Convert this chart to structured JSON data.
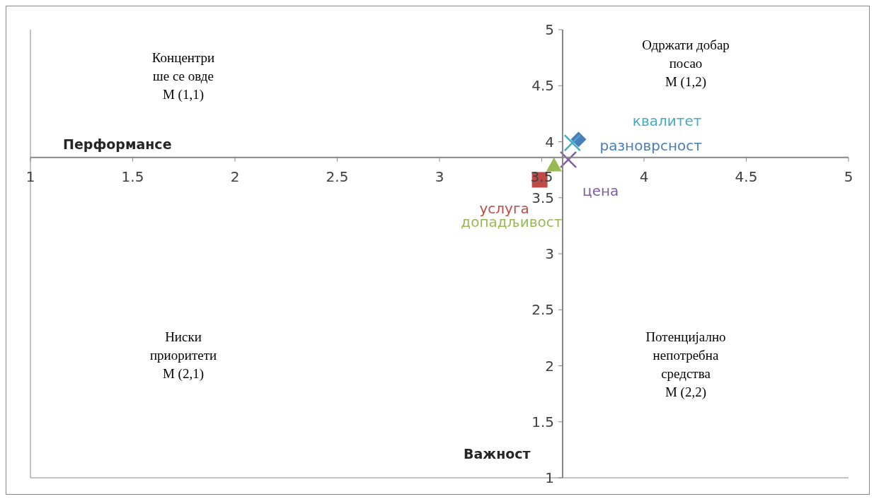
{
  "chart_data": {
    "type": "scatter",
    "xlabel": "Перформансе",
    "ylabel": "Важност",
    "xlim": [
      1,
      5
    ],
    "ylim": [
      1,
      5
    ],
    "xticks": [
      1,
      1.5,
      2,
      2.5,
      3,
      3.5,
      4,
      4.5,
      5
    ],
    "yticks": [
      1,
      1.5,
      2,
      2.5,
      3,
      3.5,
      4,
      4.5,
      5
    ],
    "grid": false,
    "legend": false,
    "series": [
      {
        "name": "разноврсност",
        "color": "#4a7ebb",
        "marker": "diamond",
        "x": [
          3.68
        ],
        "values": [
          4.02
        ]
      },
      {
        "name": "услуга",
        "color": "#be4b48",
        "marker": "square",
        "x": [
          3.49
        ],
        "values": [
          3.66
        ]
      },
      {
        "name": "допадљивост",
        "color": "#98b954",
        "marker": "triangle",
        "x": [
          3.56
        ],
        "values": [
          3.79
        ]
      },
      {
        "name": "цена",
        "color": "#7d60a0",
        "marker": "cross",
        "x": [
          3.63
        ],
        "values": [
          3.84
        ]
      },
      {
        "name": "квалитет",
        "color": "#46aac5",
        "marker": "cross",
        "x": [
          3.65
        ],
        "values": [
          3.99
        ]
      }
    ],
    "annotations": [
      "Концентри\nше се овде\nM (1,1)",
      "Одржати добар\nпосао\nM (1,2)",
      "Ниски\nприоритети\nM (2,1)",
      "Потенцијално\nнепотребна\nсредства\nM (2,2)"
    ]
  }
}
